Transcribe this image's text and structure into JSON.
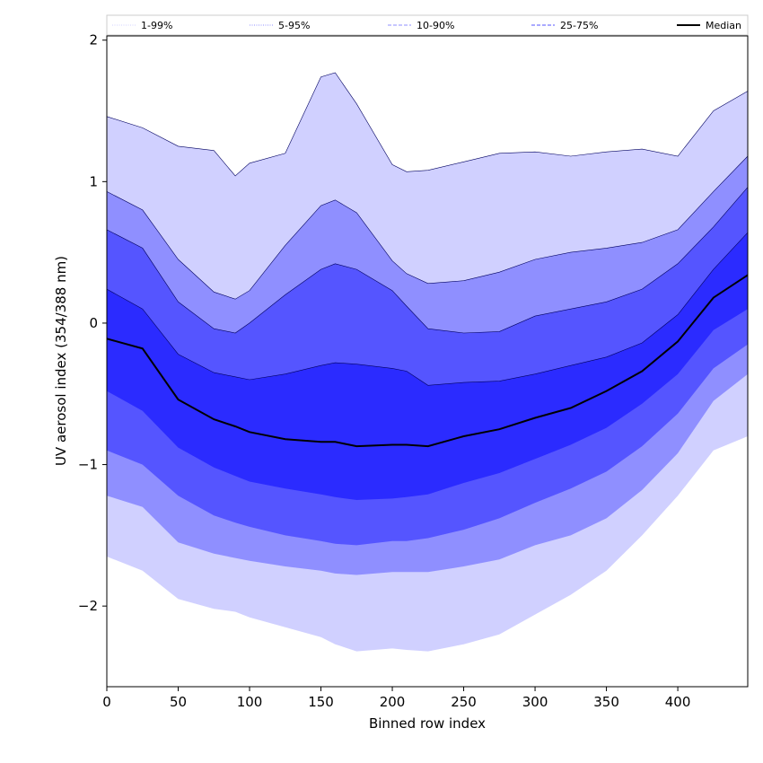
{
  "chart_data": {
    "type": "area",
    "xlabel": "Binned row index",
    "ylabel": "UV aerosol index (354/388 nm)",
    "xlim": [
      0,
      449
    ],
    "ylim": [
      -2.57,
      2.03
    ],
    "xticks": [
      0,
      50,
      100,
      150,
      200,
      250,
      300,
      350,
      400
    ],
    "yticks": [
      -2,
      -1,
      0,
      1,
      2
    ],
    "grid": false,
    "legend_position": "top",
    "x": [
      0,
      25,
      50,
      75,
      90,
      100,
      125,
      150,
      160,
      175,
      200,
      210,
      225,
      250,
      275,
      300,
      325,
      350,
      375,
      400,
      425,
      449
    ],
    "bands": [
      {
        "name": "1-99%",
        "color": "#d0d0ff",
        "upper": [
          1.46,
          1.38,
          1.25,
          1.22,
          1.04,
          1.13,
          1.2,
          1.74,
          1.77,
          1.55,
          1.12,
          1.07,
          1.08,
          1.14,
          1.2,
          1.21,
          1.18,
          1.21,
          1.23,
          1.18,
          1.5,
          1.64
        ],
        "lower": [
          -1.65,
          -1.75,
          -1.95,
          -2.02,
          -2.04,
          -2.08,
          -2.15,
          -2.22,
          -2.27,
          -2.32,
          -2.3,
          -2.31,
          -2.32,
          -2.27,
          -2.2,
          -2.06,
          -1.92,
          -1.75,
          -1.5,
          -1.22,
          -0.9,
          -0.8
        ]
      },
      {
        "name": "5-95%",
        "color": "#8f8fff",
        "upper": [
          0.93,
          0.8,
          0.45,
          0.22,
          0.17,
          0.23,
          0.55,
          0.83,
          0.87,
          0.78,
          0.44,
          0.35,
          0.28,
          0.3,
          0.36,
          0.45,
          0.5,
          0.53,
          0.57,
          0.66,
          0.93,
          1.18
        ],
        "lower": [
          -1.22,
          -1.3,
          -1.55,
          -1.63,
          -1.66,
          -1.68,
          -1.72,
          -1.75,
          -1.77,
          -1.78,
          -1.76,
          -1.76,
          -1.76,
          -1.72,
          -1.67,
          -1.57,
          -1.5,
          -1.38,
          -1.18,
          -0.92,
          -0.55,
          -0.36
        ]
      },
      {
        "name": "10-90%",
        "color": "#5555ff",
        "upper": [
          0.66,
          0.53,
          0.15,
          -0.04,
          -0.07,
          0.0,
          0.2,
          0.38,
          0.42,
          0.38,
          0.23,
          0.12,
          -0.04,
          -0.07,
          -0.06,
          0.05,
          0.1,
          0.15,
          0.24,
          0.42,
          0.68,
          0.96
        ],
        "lower": [
          -0.9,
          -1.0,
          -1.22,
          -1.36,
          -1.41,
          -1.44,
          -1.5,
          -1.54,
          -1.56,
          -1.57,
          -1.54,
          -1.54,
          -1.52,
          -1.46,
          -1.38,
          -1.27,
          -1.17,
          -1.05,
          -0.87,
          -0.64,
          -0.32,
          -0.15
        ]
      },
      {
        "name": "25-75%",
        "color": "#2b2bff",
        "upper": [
          0.24,
          0.1,
          -0.22,
          -0.35,
          -0.38,
          -0.4,
          -0.36,
          -0.3,
          -0.28,
          -0.29,
          -0.32,
          -0.34,
          -0.44,
          -0.42,
          -0.41,
          -0.36,
          -0.3,
          -0.24,
          -0.14,
          0.06,
          0.38,
          0.64
        ],
        "lower": [
          -0.48,
          -0.62,
          -0.88,
          -1.02,
          -1.08,
          -1.12,
          -1.17,
          -1.21,
          -1.23,
          -1.25,
          -1.24,
          -1.23,
          -1.21,
          -1.13,
          -1.06,
          -0.96,
          -0.86,
          -0.74,
          -0.57,
          -0.36,
          -0.05,
          0.1
        ]
      }
    ],
    "median": {
      "name": "Median",
      "color": "#000000",
      "values": [
        -0.11,
        -0.18,
        -0.54,
        -0.68,
        -0.73,
        -0.77,
        -0.82,
        -0.84,
        -0.84,
        -0.87,
        -0.86,
        -0.86,
        -0.87,
        -0.8,
        -0.75,
        -0.67,
        -0.6,
        -0.48,
        -0.34,
        -0.13,
        0.18,
        0.34
      ]
    },
    "legend": [
      {
        "label": "1-99%",
        "color": "#d0d0ff",
        "style": "dotted"
      },
      {
        "label": "5-95%",
        "color": "#8f8fff",
        "style": "dotted"
      },
      {
        "label": "10-90%",
        "color": "#8f8fff",
        "style": "dashed"
      },
      {
        "label": "25-75%",
        "color": "#5555ff",
        "style": "dashed"
      },
      {
        "label": "Median",
        "color": "#000000",
        "style": "solid"
      }
    ]
  }
}
